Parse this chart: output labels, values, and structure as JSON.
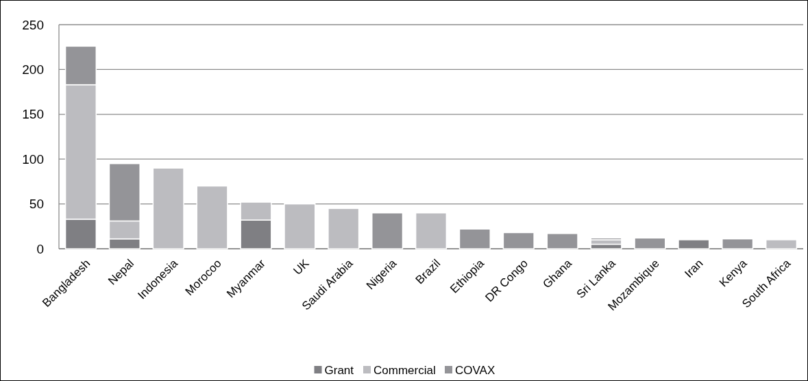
{
  "chart_data": {
    "type": "bar",
    "stacked": true,
    "categories": [
      "Bangladesh",
      "Nepal",
      "Indonesia",
      "Morocoo",
      "Myanmar",
      "UK",
      "Saudi Arabia",
      "Nigeria",
      "Brazil",
      "Ethiopia",
      "DR Congo",
      "Ghana",
      "Sri Lanka",
      "Mozambique",
      "Iran",
      "Kenya",
      "South Africa"
    ],
    "series": [
      {
        "name": "Grant",
        "color": "#7f7f83",
        "values": [
          33,
          11,
          0,
          0,
          32,
          0,
          0,
          0,
          0,
          0,
          0,
          0,
          5,
          0,
          10,
          0,
          0
        ]
      },
      {
        "name": "Commercial",
        "color": "#bcbcc0",
        "values": [
          150,
          20,
          90,
          70,
          20,
          50,
          45,
          0,
          40,
          0,
          0,
          0,
          5,
          0,
          0,
          0,
          10
        ]
      },
      {
        "name": "COVAX",
        "color": "#949498",
        "values": [
          43,
          64,
          0,
          0,
          0,
          0,
          0,
          40,
          0,
          22,
          18,
          17,
          2,
          12,
          0,
          11,
          0
        ]
      }
    ],
    "ylim": [
      0,
      250
    ],
    "yticks": [
      0,
      50,
      100,
      150,
      200,
      250
    ],
    "grid": "y",
    "legend": "bottom"
  }
}
